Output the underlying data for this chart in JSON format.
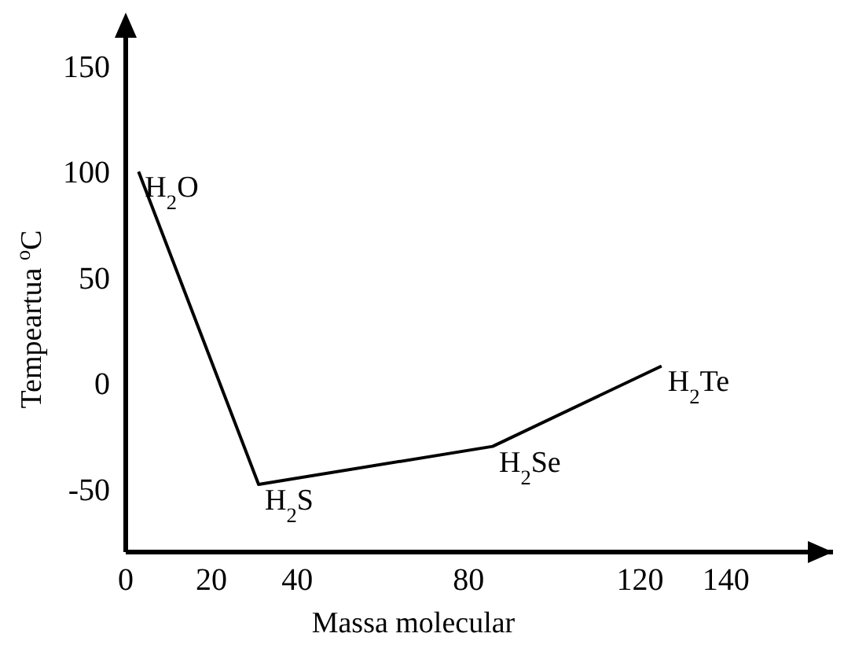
{
  "chart_data": {
    "type": "line",
    "xlabel": "Massa molecular",
    "ylabel": "Tempeartua $^{o}$C",
    "x": [
      3,
      31,
      85.6,
      125
    ],
    "series": [
      {
        "color": "#000000",
        "values": [
          100,
          -48,
          -30,
          8
        ]
      }
    ],
    "xlim": [
      0,
      165
    ],
    "xticks": [
      0,
      20,
      40,
      80,
      120,
      140
    ],
    "ylim": [
      -80,
      170
    ],
    "yticks": [
      -50,
      0,
      50,
      100,
      150
    ],
    "grid": false,
    "marker": "none",
    "line_style": "solid",
    "annotations": [
      {
        "text": "H$_{2}$O",
        "x": 3,
        "y": 100
      },
      {
        "text": "H$_{2}$S",
        "x": 31,
        "y": -48
      },
      {
        "text": "H$_{2}$Se",
        "x": 85.6,
        "y": -30
      },
      {
        "text": "H$_{2}$Te",
        "x": 125,
        "y": 8
      }
    ]
  }
}
